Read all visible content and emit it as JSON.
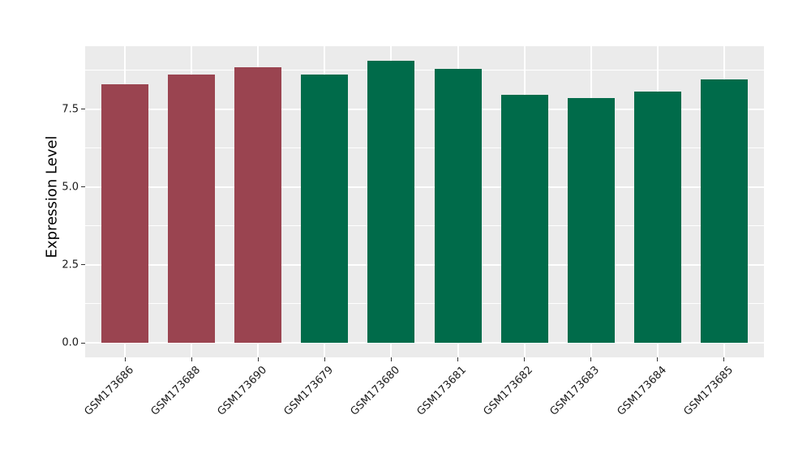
{
  "chart_data": {
    "type": "bar",
    "title": "",
    "xlabel": "",
    "ylabel": "Expression Level",
    "categories": [
      "GSM173686",
      "GSM173688",
      "GSM173690",
      "GSM173679",
      "GSM173680",
      "GSM173681",
      "GSM173682",
      "GSM173683",
      "GSM173684",
      "GSM173685"
    ],
    "values": [
      8.3,
      8.6,
      8.85,
      8.6,
      9.05,
      8.8,
      7.95,
      7.85,
      8.05,
      8.45
    ],
    "bar_colors": [
      "#9A4450",
      "#9A4450",
      "#9A4450",
      "#006B4A",
      "#006B4A",
      "#006B4A",
      "#006B4A",
      "#006B4A",
      "#006B4A",
      "#006B4A"
    ],
    "palette": {
      "maroon": "#9A4450",
      "green": "#006B4A"
    },
    "ylim": [
      0,
      9.5
    ],
    "yticks": {
      "values": [
        0,
        2.5,
        5.0,
        7.5
      ],
      "labels": [
        "0.0",
        "2.5",
        "5.0",
        "7.5"
      ]
    },
    "minor_yticks": [
      1.25,
      3.75,
      6.25,
      8.75
    ],
    "grid": "on",
    "legend_position": "none",
    "panel_background": "#EBEBEB",
    "gridline_color": "#FFFFFF",
    "tick_color": "#333333"
  }
}
